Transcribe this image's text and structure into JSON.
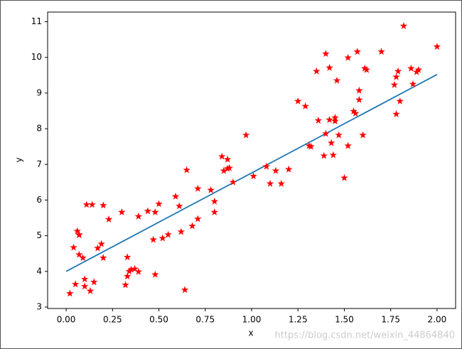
{
  "chart_data": {
    "type": "scatter",
    "x_label": "x",
    "y_label": "y",
    "xlim": [
      -0.1,
      2.1
    ],
    "ylim": [
      2.96,
      11.27
    ],
    "xticks": [
      {
        "value": 0,
        "label": "0.00"
      },
      {
        "value": 0.25,
        "label": "0.25"
      },
      {
        "value": 0.5,
        "label": "0.50"
      },
      {
        "value": 0.75,
        "label": "0.75"
      },
      {
        "value": 1,
        "label": "1.00"
      },
      {
        "value": 1.25,
        "label": "1.25"
      },
      {
        "value": 1.5,
        "label": "1.50"
      },
      {
        "value": 1.75,
        "label": "1.75"
      },
      {
        "value": 2,
        "label": "2.00"
      }
    ],
    "yticks": [
      3,
      4,
      5,
      6,
      7,
      8,
      9,
      10,
      11
    ],
    "points": {
      "color": "#ff0000",
      "marker": "star",
      "x": [
        0.02,
        0.04,
        0.05,
        0.06,
        0.07,
        0.07,
        0.07,
        0.09,
        0.1,
        0.1,
        0.11,
        0.13,
        0.14,
        0.15,
        0.17,
        0.19,
        0.2,
        0.2,
        0.23,
        0.3,
        0.32,
        0.33,
        0.33,
        0.34,
        0.35,
        0.37,
        0.39,
        0.39,
        0.44,
        0.47,
        0.48,
        0.48,
        0.5,
        0.52,
        0.55,
        0.59,
        0.61,
        0.62,
        0.64,
        0.65,
        0.68,
        0.71,
        0.71,
        0.78,
        0.8,
        0.8,
        0.84,
        0.87,
        0.85,
        0.87,
        0.88,
        0.9,
        0.97,
        1.01,
        1.08,
        1.1,
        1.13,
        1.16,
        1.2,
        1.25,
        1.29,
        1.31,
        1.32,
        1.35,
        1.36,
        1.39,
        1.4,
        1.4,
        1.42,
        1.42,
        1.43,
        1.44,
        1.45,
        1.45,
        1.46,
        1.47,
        1.5,
        1.52,
        1.52,
        1.55,
        1.56,
        1.57,
        1.58,
        1.58,
        1.6,
        1.61,
        1.62,
        1.7,
        1.77,
        1.78,
        1.78,
        1.79,
        1.8,
        1.82,
        1.86,
        1.87,
        1.89,
        1.9,
        2.0
      ],
      "values": [
        3.38,
        4.67,
        3.64,
        5.13,
        5.03,
        5.02,
        4.47,
        4.38,
        3.58,
        3.78,
        5.87,
        3.45,
        5.87,
        3.7,
        4.65,
        4.77,
        4.38,
        5.85,
        5.46,
        5.66,
        3.62,
        4.4,
        3.86,
        4.0,
        4.05,
        4.07,
        3.99,
        5.54,
        5.69,
        4.89,
        5.66,
        3.91,
        5.89,
        4.93,
        5.03,
        6.1,
        5.83,
        5.11,
        3.48,
        6.84,
        5.27,
        5.47,
        6.32,
        6.28,
        5.96,
        5.66,
        7.22,
        7.14,
        6.82,
        6.88,
        6.9,
        6.5,
        7.82,
        6.67,
        6.94,
        6.46,
        6.82,
        6.46,
        6.86,
        8.77,
        8.63,
        7.52,
        7.5,
        9.61,
        8.23,
        7.24,
        10.1,
        7.86,
        8.25,
        9.71,
        7.6,
        7.26,
        8.21,
        8.31,
        9.35,
        7.82,
        6.62,
        9.99,
        7.52,
        8.49,
        8.43,
        10.16,
        8.81,
        9.07,
        7.82,
        9.69,
        9.65,
        10.16,
        9.23,
        8.41,
        9.45,
        9.61,
        8.77,
        10.88,
        9.69,
        9.25,
        9.59,
        9.65,
        10.3
      ]
    },
    "line": {
      "color": "#1f77b4",
      "x": [
        0,
        2
      ],
      "values": [
        4.0,
        9.52
      ]
    },
    "watermark": "https://blog.csdn.net/weixin_44864840"
  }
}
